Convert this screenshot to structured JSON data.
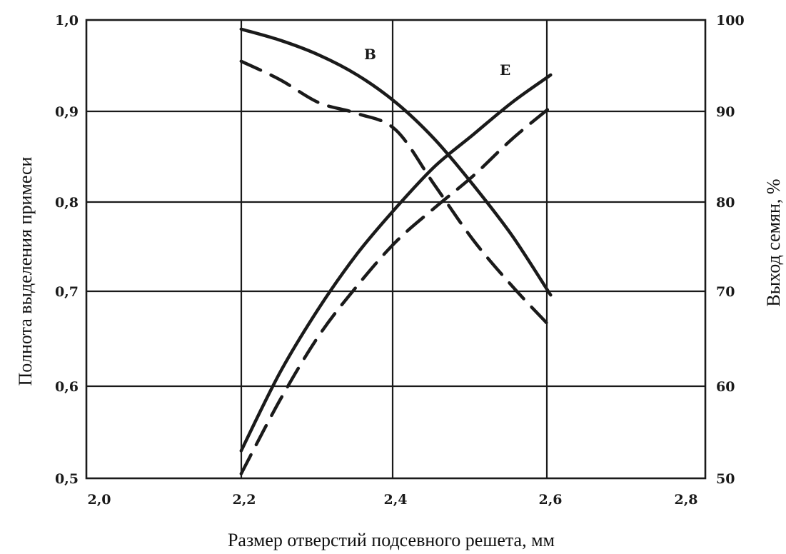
{
  "chart_data": {
    "type": "line",
    "xlabel": "Размер отверстий подсевного решета, мм",
    "ylabel": "Полнота выделения примеси",
    "y2label": "Выход семян, %",
    "xlim": [
      2.0,
      2.8
    ],
    "ylim": [
      0.5,
      1.0
    ],
    "y2lim": [
      50,
      100
    ],
    "grid": true,
    "x_ticks": [
      "2,0",
      "2,2",
      "2,4",
      "2,6",
      "2,8"
    ],
    "y_ticks": [
      "0,5",
      "0,6",
      "0,7",
      "0,8",
      "0,9",
      "1,0"
    ],
    "y2_ticks": [
      "50",
      "60",
      "70",
      "80",
      "90",
      "100"
    ],
    "series": [
      {
        "name": "В",
        "style": "solid",
        "color": "#1a1a1a",
        "x": [
          2.2,
          2.25,
          2.3,
          2.35,
          2.4,
          2.45,
          2.5,
          2.55,
          2.6
        ],
        "y": [
          0.99,
          0.978,
          0.962,
          0.94,
          0.91,
          0.87,
          0.82,
          0.765,
          0.7
        ]
      },
      {
        "name": "",
        "style": "dashed",
        "color": "#1a1a1a",
        "x": [
          2.2,
          2.25,
          2.3,
          2.35,
          2.4,
          2.45,
          2.5,
          2.55,
          2.6
        ],
        "y": [
          0.955,
          0.935,
          0.91,
          0.898,
          0.88,
          0.82,
          0.76,
          0.71,
          0.665
        ]
      },
      {
        "name": "Е",
        "style": "solid",
        "color": "#1a1a1a",
        "x": [
          2.2,
          2.25,
          2.3,
          2.35,
          2.4,
          2.45,
          2.5,
          2.55,
          2.6
        ],
        "y": [
          0.53,
          0.615,
          0.685,
          0.745,
          0.795,
          0.84,
          0.875,
          0.91,
          0.94
        ]
      },
      {
        "name": "",
        "style": "dashed",
        "color": "#1a1a1a",
        "x": [
          2.2,
          2.25,
          2.3,
          2.35,
          2.4,
          2.45,
          2.5,
          2.55,
          2.6
        ],
        "y": [
          0.505,
          0.585,
          0.655,
          0.71,
          0.758,
          0.795,
          0.83,
          0.87,
          0.905
        ]
      }
    ]
  }
}
